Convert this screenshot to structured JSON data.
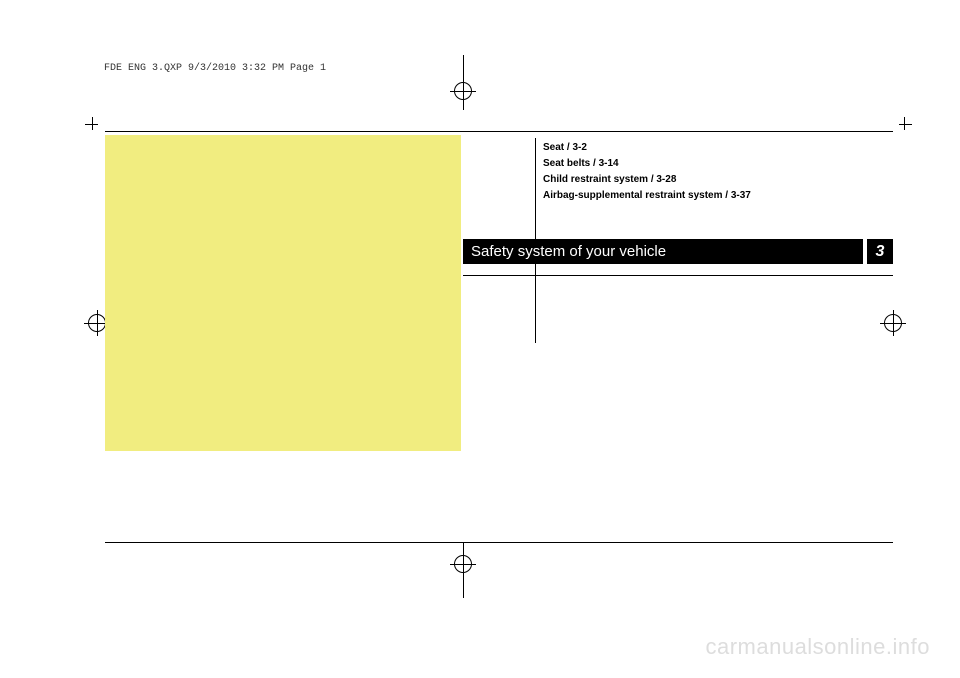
{
  "header": {
    "text": "FDE ENG 3.QXP  9/3/2010  3:32 PM  Page 1"
  },
  "toc": {
    "items": [
      "Seat / 3-2",
      "Seat belts / 3-14",
      "Child restraint system / 3-28",
      "Airbag-supplemental restraint system / 3-37"
    ]
  },
  "chapter": {
    "title": "Safety system of your vehicle",
    "number": "3"
  },
  "watermark": "carmanualsonline.info",
  "colors": {
    "yellow": "#f1ed80",
    "black": "#000000",
    "white": "#ffffff",
    "watermark_gray": "#dddddd"
  }
}
